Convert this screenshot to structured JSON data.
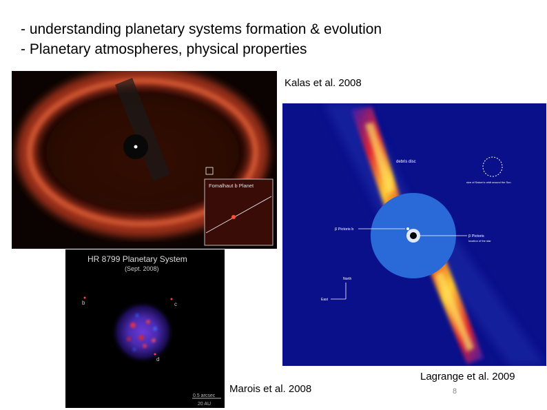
{
  "bullets": [
    "- understanding planetary systems formation & evolution",
    "- Planetary atmospheres, physical properties"
  ],
  "captions": {
    "kalas": "Kalas et al. 2008",
    "marois": "Marois et al. 2008",
    "lagrange": "Lagrange et al. 2009"
  },
  "page_number": "8",
  "fomalhaut": {
    "inset_label": "Fomalhaut b Planet"
  },
  "hr8799": {
    "title": "HR 8799 Planetary System",
    "subtitle": "(Sept. 2008)",
    "planet_b": "b",
    "planet_c": "c",
    "planet_d": "d",
    "scale_arcsec": "0.5 arcsec",
    "scale_au": "20 AU"
  },
  "betapic": {
    "debris_disc": "debris disc",
    "orbit_note": "size of Saturn's orbit around the Sun",
    "planet_label": "β Pictoris b",
    "star_label": "β Pictoris",
    "star_note": "location of the star",
    "north": "North",
    "east": "East"
  },
  "colors": {
    "fomalhaut_ring": "#c8401e",
    "betapic_bg": "#0a0f8a",
    "betapic_mask": "#2a6ad8"
  }
}
